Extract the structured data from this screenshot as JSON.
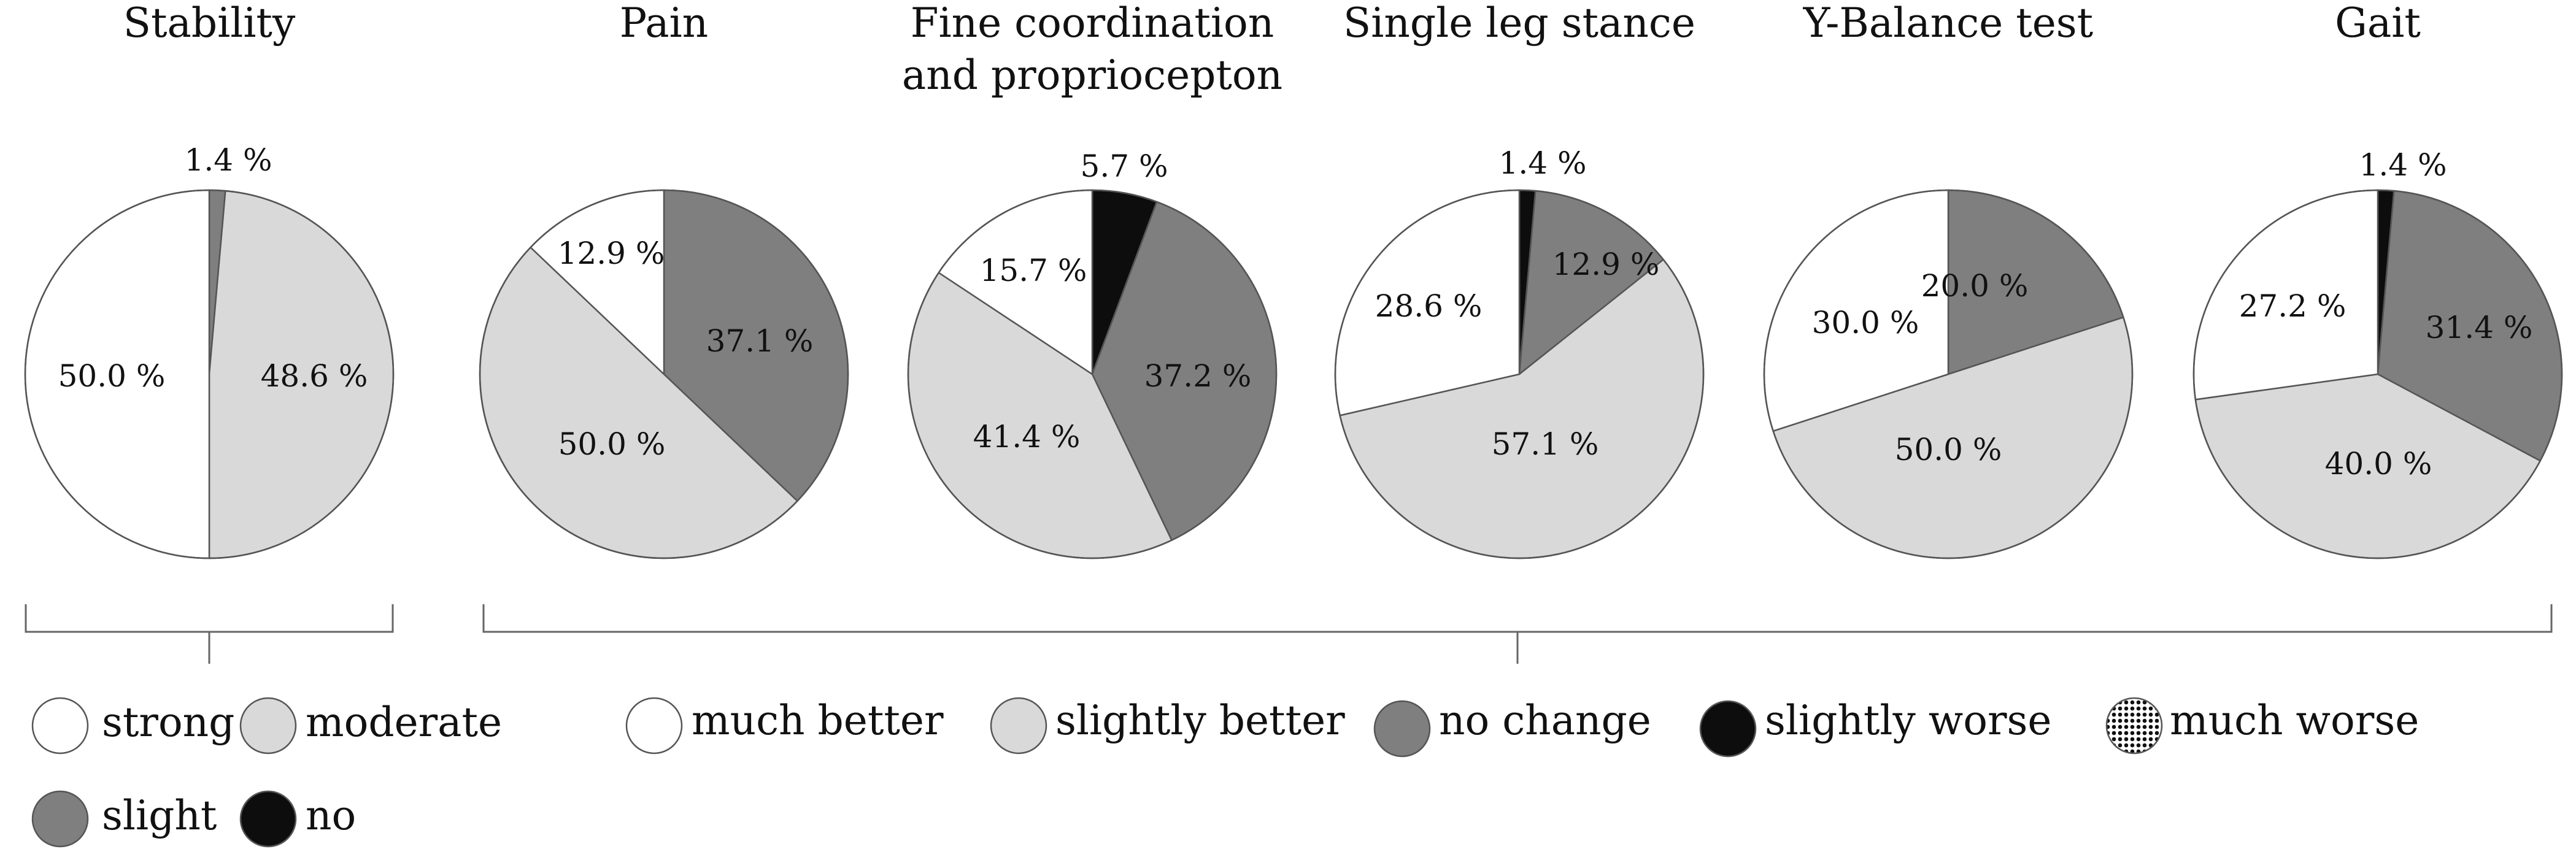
{
  "colors": {
    "white": "#ffffff",
    "light": "#d9d9d9",
    "dark": "#7f7f7f",
    "black": "#0d0d0d",
    "outline": "#555555"
  },
  "chart_data": [
    {
      "type": "pie",
      "title": "Stability",
      "slices": [
        {
          "label": "slight",
          "value": 1.4,
          "text": "1.4 %",
          "color": "dark"
        },
        {
          "label": "moderate",
          "value": 48.6,
          "text": "48.6 %",
          "color": "light"
        },
        {
          "label": "strong",
          "value": 50.0,
          "text": "50.0 %",
          "color": "white"
        }
      ]
    },
    {
      "type": "pie",
      "title": "Pain",
      "slices": [
        {
          "label": "no change",
          "value": 37.1,
          "text": "37.1 %",
          "color": "dark"
        },
        {
          "label": "slightly better",
          "value": 50.0,
          "text": "50.0 %",
          "color": "light"
        },
        {
          "label": "much better",
          "value": 12.9,
          "text": "12.9 %",
          "color": "white"
        }
      ]
    },
    {
      "type": "pie",
      "title": "Fine coordination and propriocepton",
      "title_lines": [
        "Fine coordination",
        "and propriocepton"
      ],
      "slices": [
        {
          "label": "slightly worse",
          "value": 5.7,
          "text": "5.7 %",
          "color": "black"
        },
        {
          "label": "no change",
          "value": 37.2,
          "text": "37.2 %",
          "color": "dark"
        },
        {
          "label": "slightly better",
          "value": 41.4,
          "text": "41.4 %",
          "color": "light"
        },
        {
          "label": "much better",
          "value": 15.7,
          "text": "15.7 %",
          "color": "white"
        }
      ]
    },
    {
      "type": "pie",
      "title": "Single leg stance",
      "slices": [
        {
          "label": "slightly worse",
          "value": 1.4,
          "text": "1.4 %",
          "color": "black"
        },
        {
          "label": "no change",
          "value": 12.9,
          "text": "12.9 %",
          "color": "dark"
        },
        {
          "label": "slightly better",
          "value": 57.1,
          "text": "57.1 %",
          "color": "light"
        },
        {
          "label": "much better",
          "value": 28.6,
          "text": "28.6 %",
          "color": "white"
        }
      ]
    },
    {
      "type": "pie",
      "title": "Y-Balance test",
      "slices": [
        {
          "label": "no change",
          "value": 20.0,
          "text": "20.0 %",
          "color": "dark"
        },
        {
          "label": "slightly better",
          "value": 50.0,
          "text": "50.0 %",
          "color": "light"
        },
        {
          "label": "much better",
          "value": 30.0,
          "text": "30.0 %",
          "color": "white"
        }
      ]
    },
    {
      "type": "pie",
      "title": "Gait",
      "slices": [
        {
          "label": "slightly worse",
          "value": 1.4,
          "text": "1.4 %",
          "color": "black"
        },
        {
          "label": "no change",
          "value": 31.4,
          "text": "31.4 %",
          "color": "dark"
        },
        {
          "label": "slightly better",
          "value": 40.0,
          "text": "40.0 %",
          "color": "light"
        },
        {
          "label": "much better",
          "value": 27.2,
          "text": "27.2 %",
          "color": "white"
        }
      ]
    }
  ],
  "legend_stability": [
    {
      "label": "strong",
      "color": "white"
    },
    {
      "label": "moderate",
      "color": "light"
    },
    {
      "label": "slight",
      "color": "dark"
    },
    {
      "label": "no",
      "color": "black"
    }
  ],
  "legend_outcome": [
    {
      "label": "much better",
      "color": "white"
    },
    {
      "label": "slightly better",
      "color": "light"
    },
    {
      "label": "no change",
      "color": "dark"
    },
    {
      "label": "slightly worse",
      "color": "black"
    },
    {
      "label": "much worse",
      "color": "dotted"
    }
  ]
}
